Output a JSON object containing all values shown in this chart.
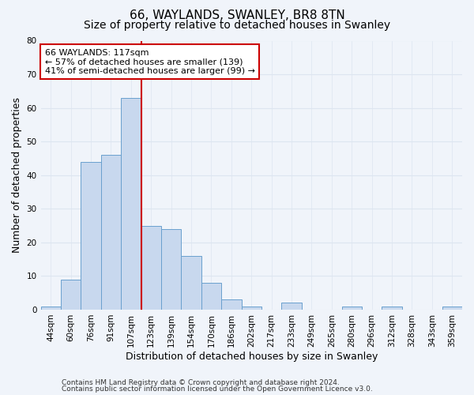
{
  "title": "66, WAYLANDS, SWANLEY, BR8 8TN",
  "subtitle": "Size of property relative to detached houses in Swanley",
  "xlabel": "Distribution of detached houses by size in Swanley",
  "ylabel": "Number of detached properties",
  "bar_labels": [
    "44sqm",
    "60sqm",
    "76sqm",
    "91sqm",
    "107sqm",
    "123sqm",
    "139sqm",
    "154sqm",
    "170sqm",
    "186sqm",
    "202sqm",
    "217sqm",
    "233sqm",
    "249sqm",
    "265sqm",
    "280sqm",
    "296sqm",
    "312sqm",
    "328sqm",
    "343sqm",
    "359sqm"
  ],
  "bar_values": [
    1,
    9,
    44,
    46,
    63,
    25,
    24,
    16,
    8,
    3,
    1,
    0,
    2,
    0,
    0,
    1,
    0,
    1,
    0,
    0,
    1
  ],
  "bar_color": "#c8d8ee",
  "bar_edge_color": "#6aa0ce",
  "background_color": "#f0f4fa",
  "plot_bg_color": "#f0f4fa",
  "grid_color": "#dde5f0",
  "ylim": [
    0,
    80
  ],
  "yticks": [
    0,
    10,
    20,
    30,
    40,
    50,
    60,
    70,
    80
  ],
  "vline_color": "#cc0000",
  "annotation_text": "66 WAYLANDS: 117sqm\n← 57% of detached houses are smaller (139)\n41% of semi-detached houses are larger (99) →",
  "annotation_box_facecolor": "#ffffff",
  "annotation_box_edgecolor": "#cc0000",
  "footnote1": "Contains HM Land Registry data © Crown copyright and database right 2024.",
  "footnote2": "Contains public sector information licensed under the Open Government Licence v3.0.",
  "title_fontsize": 11,
  "subtitle_fontsize": 10,
  "tick_fontsize": 7.5,
  "label_fontsize": 9,
  "annotation_fontsize": 8,
  "footnote_fontsize": 6.5
}
